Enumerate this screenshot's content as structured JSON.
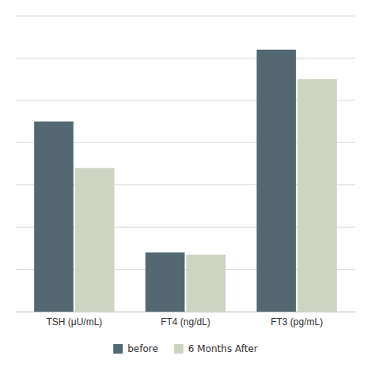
{
  "chart_data": {
    "type": "bar",
    "categories": [
      "TSH (μU/mL)",
      "FT4 (ng/dL)",
      "FT3 (pg/mL)"
    ],
    "series": [
      {
        "name": "before",
        "color": "#536870",
        "values": [
          4.5,
          1.4,
          6.2
        ]
      },
      {
        "name": "6 Months After",
        "color": "#cdd4c2",
        "values": [
          3.4,
          1.35,
          5.5
        ]
      }
    ],
    "ylim": [
      0,
      7.0
    ],
    "yticks": [
      0,
      1,
      2,
      3,
      4,
      5,
      6,
      7
    ],
    "grid": true,
    "tick_labels": "x",
    "legend": "bottom"
  }
}
